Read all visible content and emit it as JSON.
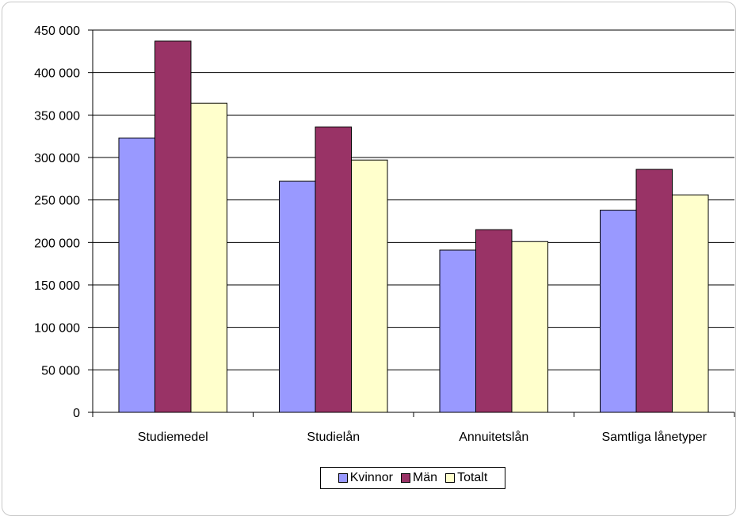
{
  "chart_data": {
    "type": "bar",
    "categories": [
      "Studiemedel",
      "Studielån",
      "Annuitetslån",
      "Samtliga lånetyper"
    ],
    "series": [
      {
        "name": "Kvinnor",
        "color": "#9999ff",
        "values": [
          323000,
          272000,
          191000,
          238000
        ]
      },
      {
        "name": "Män",
        "color": "#993366",
        "values": [
          437000,
          336000,
          215000,
          286000
        ]
      },
      {
        "name": "Totalt",
        "color": "#ffffcc",
        "values": [
          364000,
          297000,
          201000,
          256000
        ]
      }
    ],
    "yticks": [
      "0",
      "50 000",
      "100 000",
      "150 000",
      "200 000",
      "250 000",
      "300 000",
      "350 000",
      "400 000",
      "450 000"
    ],
    "ylim": [
      0,
      450000
    ],
    "grid": true,
    "legend_position": "bottom",
    "title": "",
    "xlabel": "",
    "ylabel": ""
  }
}
